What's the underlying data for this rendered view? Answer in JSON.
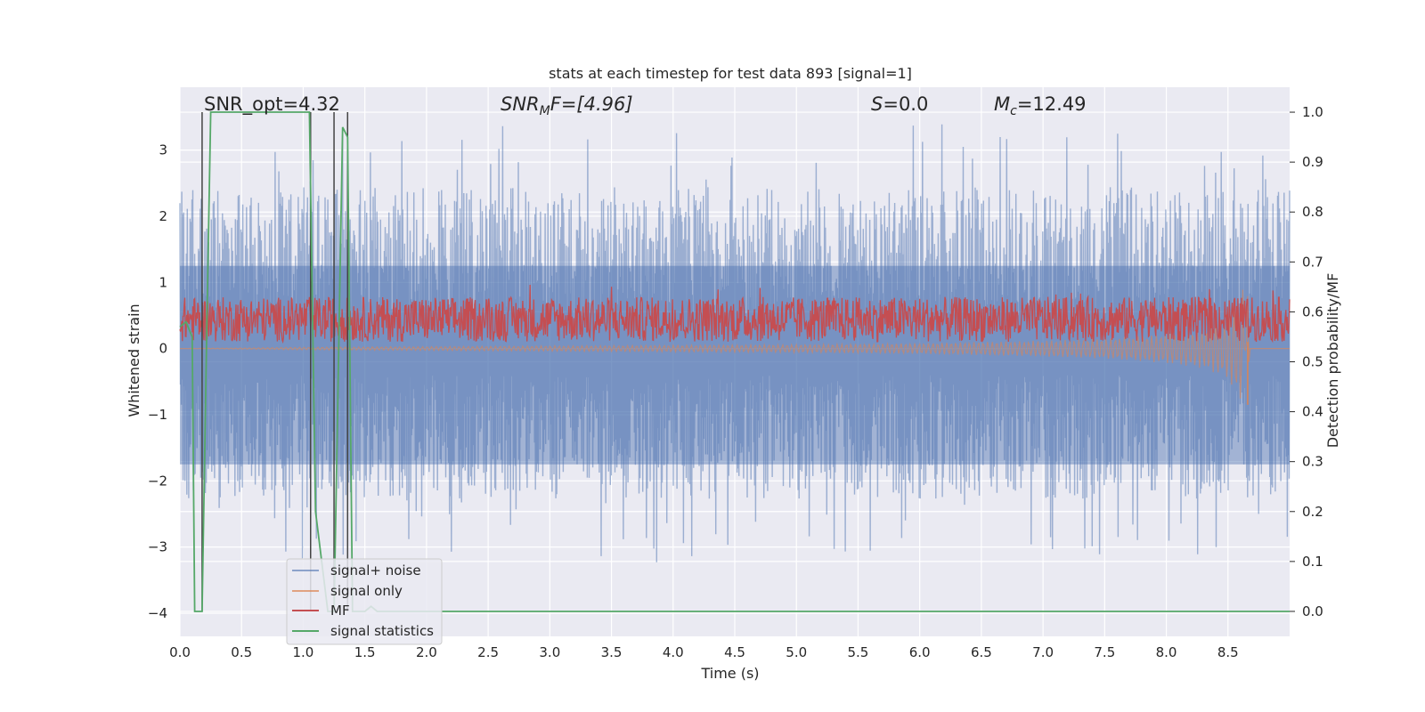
{
  "chart_data": {
    "type": "line",
    "title": "stats at each timestep for test data 893 [signal=1]",
    "xlabel": "Time (s)",
    "ylabel_left": "Whitened strain",
    "ylabel_right": "Detection probability/MF",
    "xlim": [
      0.0,
      9.0
    ],
    "ylim_left": [
      -4.35,
      3.95
    ],
    "ylim_right": [
      -0.05,
      1.05
    ],
    "x_ticks": [
      "0.0",
      "0.5",
      "1.0",
      "1.5",
      "2.0",
      "2.5",
      "3.0",
      "3.5",
      "4.0",
      "4.5",
      "5.0",
      "5.5",
      "6.0",
      "6.5",
      "7.0",
      "7.5",
      "8.0",
      "8.5"
    ],
    "x_tick_values": [
      0,
      0.5,
      1,
      1.5,
      2,
      2.5,
      3,
      3.5,
      4,
      4.5,
      5,
      5.5,
      6,
      6.5,
      7,
      7.5,
      8,
      8.5
    ],
    "y_left_ticks": [
      "−4",
      "−3",
      "−2",
      "−1",
      "0",
      "1",
      "2",
      "3"
    ],
    "y_left_tick_values": [
      -4,
      -3,
      -2,
      -1,
      0,
      1,
      2,
      3
    ],
    "y_right_ticks": [
      "0.0",
      "0.1",
      "0.2",
      "0.3",
      "0.4",
      "0.5",
      "0.6",
      "0.7",
      "0.8",
      "0.9",
      "1.0"
    ],
    "y_right_tick_values": [
      0,
      0.1,
      0.2,
      0.3,
      0.4,
      0.5,
      0.6,
      0.7,
      0.8,
      0.9,
      1.0
    ],
    "grid": true,
    "legend_position": "lower-left",
    "annotations": {
      "snr_opt": "SNR_opt=4.32",
      "snr_mf_main": "SNR",
      "snr_mf_sub": "M",
      "snr_mf_rest": "F=[4.96]",
      "s_main": "S",
      "s_rest": "=0.0",
      "mc_main": "M",
      "mc_sub": "c",
      "mc_rest": "=12.49"
    },
    "series": [
      {
        "name": "signal+ noise",
        "color": "#4c72b0",
        "axis": "left",
        "description_values": "noise-dominated, roughly uniform envelope between about -2.5 and 2.8",
        "envelope": {
          "x": [
            0,
            9
          ],
          "low": -2.6,
          "high": 2.8
        }
      },
      {
        "name": "signal only",
        "color": "#dd8452",
        "axis": "left",
        "points": [
          [
            0,
            0
          ],
          [
            1,
            0.02
          ],
          [
            2,
            0.03
          ],
          [
            3,
            0.04
          ],
          [
            4,
            0.05
          ],
          [
            5,
            0.06
          ],
          [
            6,
            0.08
          ],
          [
            7,
            0.12
          ],
          [
            7.5,
            0.15
          ],
          [
            8,
            0.22
          ],
          [
            8.3,
            0.3
          ],
          [
            8.5,
            0.45
          ],
          [
            8.62,
            0.9
          ],
          [
            8.66,
            -0.85
          ],
          [
            8.68,
            0.0
          ],
          [
            9,
            0
          ]
        ]
      },
      {
        "name": "MF",
        "color": "#c44e52",
        "axis": "right",
        "envelope": {
          "x": [
            0,
            9
          ],
          "low": 0.54,
          "high": 0.63
        }
      },
      {
        "name": "signal statistics",
        "color": "#55a868",
        "axis": "right",
        "points": [
          [
            0.0,
            0.57
          ],
          [
            0.05,
            0.58
          ],
          [
            0.1,
            0.55
          ],
          [
            0.12,
            0.0
          ],
          [
            0.18,
            0.0
          ],
          [
            0.22,
            0.6
          ],
          [
            0.25,
            1.0
          ],
          [
            0.8,
            1.0
          ],
          [
            1.0,
            1.0
          ],
          [
            1.05,
            1.0
          ],
          [
            1.1,
            0.2
          ],
          [
            1.2,
            0.0
          ],
          [
            1.25,
            0.0
          ],
          [
            1.32,
            0.97
          ],
          [
            1.36,
            0.95
          ],
          [
            1.4,
            0.0
          ],
          [
            1.5,
            0.0
          ],
          [
            1.55,
            0.01
          ],
          [
            1.6,
            0.0
          ],
          [
            9.0,
            0.0
          ]
        ]
      }
    ],
    "vertical_markers_x": [
      0.18,
      1.06,
      1.25,
      1.36
    ]
  }
}
